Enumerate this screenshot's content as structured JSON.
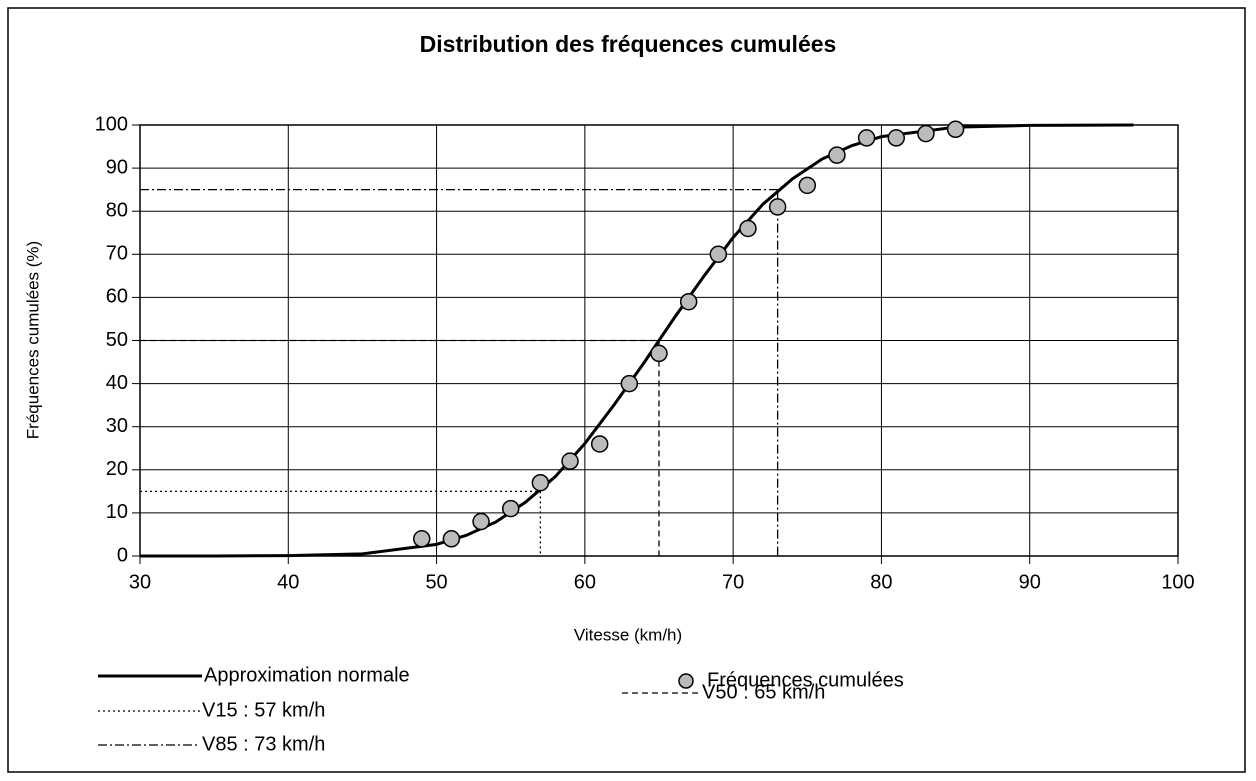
{
  "chart_data": {
    "type": "line",
    "title": "Distribution des fréquences cumulées",
    "x_label": "Vitesse (km/h)",
    "y_label": "Fréquences cumulées (%)",
    "xlim": [
      30,
      100
    ],
    "xticks": [
      30,
      40,
      50,
      60,
      70,
      80,
      90,
      100
    ],
    "ylim": [
      0,
      100
    ],
    "yticks": [
      0,
      10,
      20,
      30,
      40,
      50,
      60,
      70,
      80,
      90,
      100
    ],
    "grid": true,
    "series": [
      {
        "name": "Approximation normale",
        "type": "line",
        "color": "#000000",
        "x": [
          30,
          35,
          40,
          45,
          50,
          52,
          54,
          56,
          58,
          60,
          62,
          64,
          66,
          68,
          70,
          72,
          74,
          76,
          78,
          80,
          85,
          90,
          97
        ],
        "values": [
          0,
          0,
          0.1,
          0.5,
          2.7,
          4.8,
          7.9,
          12.5,
          18.4,
          26.1,
          35.2,
          44.9,
          55.1,
          64.8,
          73.9,
          81.6,
          87.5,
          92.1,
          95.2,
          97.3,
          99.5,
          99.9,
          100
        ]
      },
      {
        "name": "Fréquences cumulées",
        "type": "scatter",
        "color": "#bbbbbb",
        "x": [
          49,
          51,
          53,
          55,
          57,
          59,
          61,
          63,
          65,
          67,
          69,
          71,
          73,
          75,
          77,
          79,
          81,
          83,
          85
        ],
        "values": [
          4,
          4,
          8,
          11,
          17,
          22,
          26,
          40,
          47,
          59,
          70,
          76,
          81,
          86,
          93,
          97,
          97,
          98,
          99
        ]
      }
    ],
    "reference_lines": [
      {
        "name": "V15 : 57 km/h",
        "x": 57,
        "y": 15,
        "style": "dotted"
      },
      {
        "name": "V50 : 65 km/h",
        "x": 65,
        "y": 50,
        "style": "dashed"
      },
      {
        "name": "V85 : 73 km/h",
        "x": 73,
        "y": 85,
        "style": "dashdot"
      }
    ]
  }
}
